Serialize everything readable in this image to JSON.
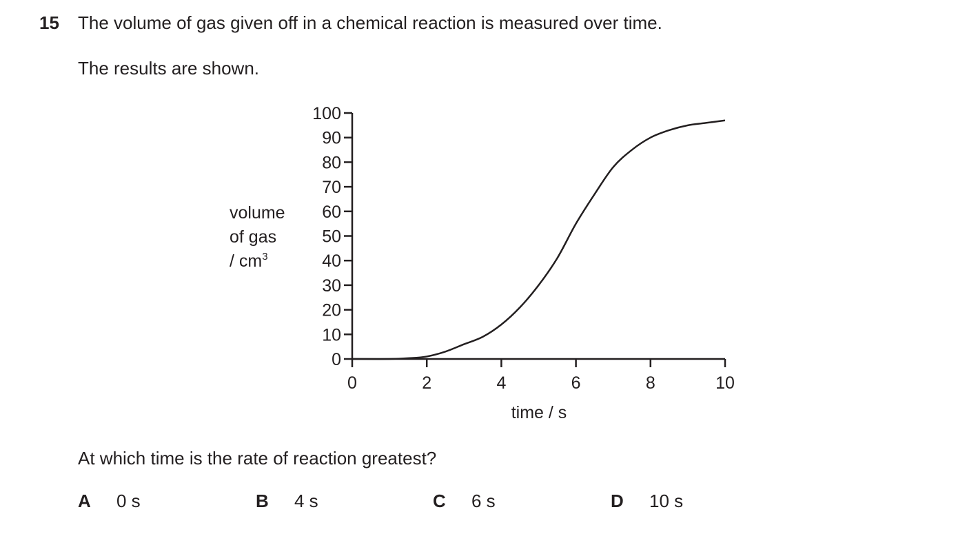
{
  "question": {
    "number": "15",
    "stem": "The volume of gas given off in a chemical reaction is measured over time.",
    "intro": "The results are shown.",
    "prompt": "At which time is the rate of reaction greatest?",
    "options": [
      {
        "letter": "A",
        "text": "0 s"
      },
      {
        "letter": "B",
        "text": "4 s"
      },
      {
        "letter": "C",
        "text": "6 s"
      },
      {
        "letter": "D",
        "text": "10 s"
      }
    ]
  },
  "chart_data": {
    "type": "line",
    "title": "",
    "xlabel": "time / s",
    "ylabel_lines": [
      "volume",
      "of gas",
      "/ cm",
      "3"
    ],
    "xlim": [
      0,
      10
    ],
    "ylim": [
      0,
      100
    ],
    "xticks": [
      0,
      2,
      4,
      6,
      8,
      10
    ],
    "yticks": [
      0,
      10,
      20,
      30,
      40,
      50,
      60,
      70,
      80,
      90,
      100
    ],
    "grid": false,
    "series": [
      {
        "x": [
          0,
          1,
          1.5,
          2,
          2.5,
          3,
          3.5,
          4,
          4.5,
          5,
          5.5,
          6,
          6.5,
          7,
          7.5,
          8,
          8.5,
          9,
          9.5,
          10
        ],
        "y": [
          0,
          0,
          0.3,
          1,
          3,
          6,
          9,
          14,
          21,
          30,
          41,
          55,
          67,
          78,
          85,
          90,
          93,
          95,
          96,
          97
        ]
      }
    ]
  }
}
